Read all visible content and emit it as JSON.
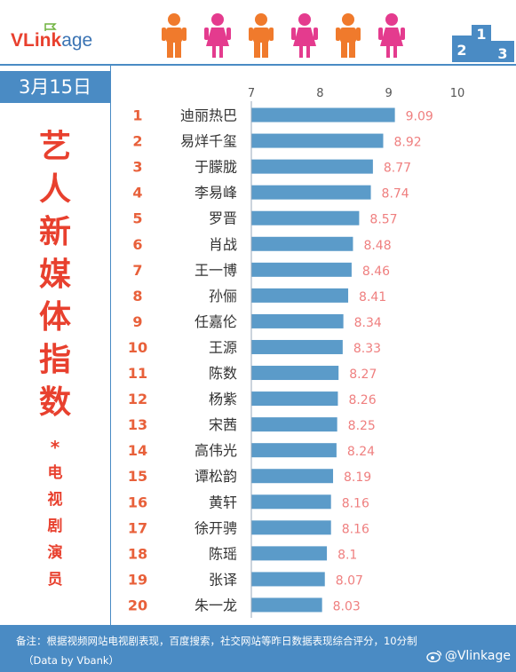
{
  "header": {
    "logo_bold": "VLink",
    "logo_rest": "age",
    "podium_numbers": [
      "2",
      "1",
      "3"
    ]
  },
  "sidebar": {
    "date": "3月15日",
    "title": [
      "艺",
      "人",
      "新",
      "媒",
      "体",
      "指",
      "数"
    ],
    "star": "*",
    "subtitle": [
      "电",
      "视",
      "剧",
      "演",
      "员"
    ]
  },
  "footer": {
    "note": "备注：根据视频网站电视剧表现，百度搜索，社交网站等昨日数据表现综合评分，10分制",
    "source": "（Data by Vbank）",
    "handle": "@Vlinkage"
  },
  "colors": {
    "accent_blue": "#4a8bc4",
    "bar": "#5b9bc9",
    "red": "#e8402e",
    "value_pink": "#ef7f7f",
    "rank_orange": "#e8603a",
    "figure_orange": "#f07a2c",
    "figure_pink": "#e43b8e"
  },
  "chart_data": {
    "type": "bar",
    "orientation": "horizontal",
    "xlim": [
      7,
      10
    ],
    "x_ticks": [
      "7",
      "8",
      "9",
      "10"
    ],
    "ranks": [
      "1",
      "2",
      "3",
      "4",
      "5",
      "6",
      "7",
      "8",
      "9",
      "10",
      "11",
      "12",
      "13",
      "14",
      "15",
      "16",
      "17",
      "18",
      "19",
      "20"
    ],
    "categories": [
      "迪丽热巴",
      "易烊千玺",
      "于朦胧",
      "李易峰",
      "罗晋",
      "肖战",
      "王一博",
      "孙俪",
      "任嘉伦",
      "王源",
      "陈数",
      "杨紫",
      "宋茜",
      "高伟光",
      "谭松韵",
      "黄轩",
      "徐开骋",
      "陈瑶",
      "张译",
      "朱一龙"
    ],
    "values": [
      9.09,
      8.92,
      8.77,
      8.74,
      8.57,
      8.48,
      8.46,
      8.41,
      8.34,
      8.33,
      8.27,
      8.26,
      8.25,
      8.24,
      8.19,
      8.16,
      8.16,
      8.1,
      8.07,
      8.03
    ],
    "value_labels": [
      "9.09",
      "8.92",
      "8.77",
      "8.74",
      "8.57",
      "8.48",
      "8.46",
      "8.41",
      "8.34",
      "8.33",
      "8.27",
      "8.26",
      "8.25",
      "8.24",
      "8.19",
      "8.16",
      "8.16",
      "8.1",
      "8.07",
      "8.03"
    ]
  }
}
